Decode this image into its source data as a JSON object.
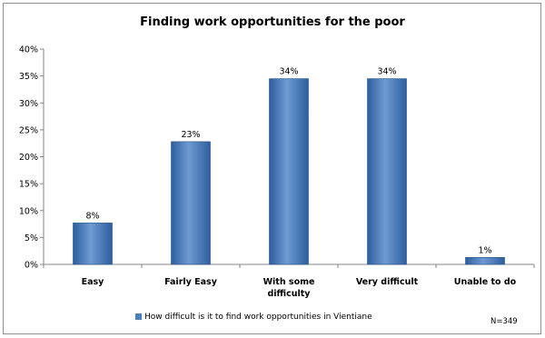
{
  "chart_data": {
    "type": "bar",
    "title": "Finding work opportunities for the poor",
    "categories": [
      "Easy",
      "Fairly Easy",
      "With some difficulty",
      "Very difficult",
      "Unable to do"
    ],
    "category_lines": [
      [
        "Easy"
      ],
      [
        "Fairly Easy"
      ],
      [
        "With some",
        "difficulty"
      ],
      [
        "Very difficult"
      ],
      [
        "Unable to do"
      ]
    ],
    "series": [
      {
        "name": "How difficult is it to find work opportunities in Vientiane",
        "values": [
          0.077,
          0.228,
          0.345,
          0.345,
          0.013
        ],
        "data_labels": [
          "8%",
          "23%",
          "34%",
          "34%",
          "1%"
        ]
      }
    ],
    "xlabel": "",
    "ylabel": "",
    "ylim": [
      0,
      0.4
    ],
    "yticks": [
      "0%",
      "5%",
      "10%",
      "15%",
      "20%",
      "25%",
      "30%",
      "35%",
      "40%"
    ],
    "grid": false,
    "legend_position": "bottom",
    "note": "N=349",
    "colors": {
      "bar_dark": "#2d5f9e",
      "bar_mid": "#4a7ebb",
      "bar_light": "#6f9ad2",
      "axis": "#868686"
    }
  }
}
